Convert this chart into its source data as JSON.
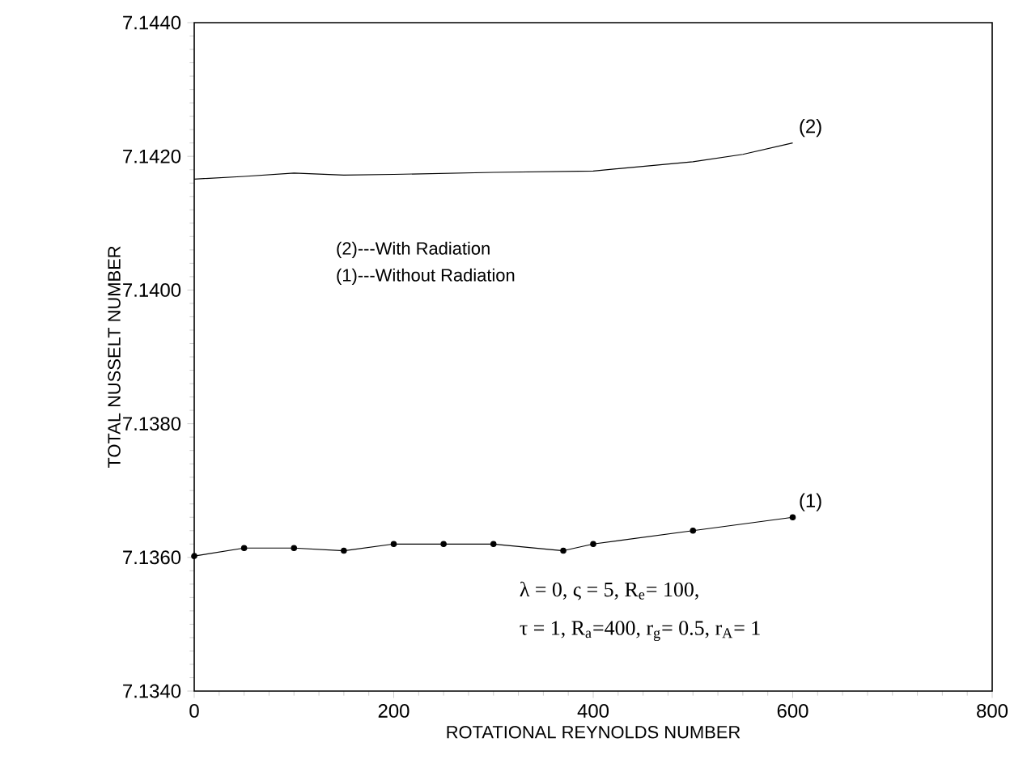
{
  "chart_data": {
    "type": "line",
    "xlabel": "ROTATIONAL  REYNOLDS  NUMBER",
    "ylabel": "TOTAL NUSSELT NUMBER",
    "xlim": [
      0,
      800
    ],
    "xticks": [
      0,
      200,
      400,
      600,
      800
    ],
    "ylim": [
      7.134,
      7.144
    ],
    "yticks": [
      {
        "value": 7.134,
        "label": "7.1340"
      },
      {
        "value": 7.136,
        "label": "7.1360"
      },
      {
        "value": 7.138,
        "label": "7.1380"
      },
      {
        "value": 7.14,
        "label": "7.1400"
      },
      {
        "value": 7.142,
        "label": "7.1420"
      },
      {
        "value": 7.144,
        "label": "7.1440"
      }
    ],
    "grid": false,
    "legend": false,
    "line_style": "solid",
    "series": [
      {
        "name": "(2)",
        "color": "#000000",
        "marker": "none",
        "x": [
          0,
          50,
          100,
          150,
          200,
          300,
          400,
          450,
          500,
          550,
          600
        ],
        "values": [
          7.14166,
          7.1417,
          7.14175,
          7.14172,
          7.14173,
          7.14176,
          7.14178,
          7.14185,
          7.14192,
          7.14203,
          7.1422
        ]
      },
      {
        "name": "(1)",
        "color": "#000000",
        "marker": "circle",
        "x": [
          0,
          50,
          100,
          150,
          200,
          250,
          300,
          370,
          400,
          500,
          600
        ],
        "values": [
          7.13602,
          7.13614,
          7.13614,
          7.1361,
          7.1362,
          7.1362,
          7.1362,
          7.1361,
          7.1362,
          7.1364,
          7.1366
        ]
      }
    ],
    "annotations": [
      "(2)---With Radiation",
      "(1)---Without Radiation",
      "λ = 0,  ς = 5, R$_{e}$= 100,",
      "τ = 1, R$_{a}$=400, r$_{g}$= 0.5, r$_{A}$= 1"
    ]
  }
}
